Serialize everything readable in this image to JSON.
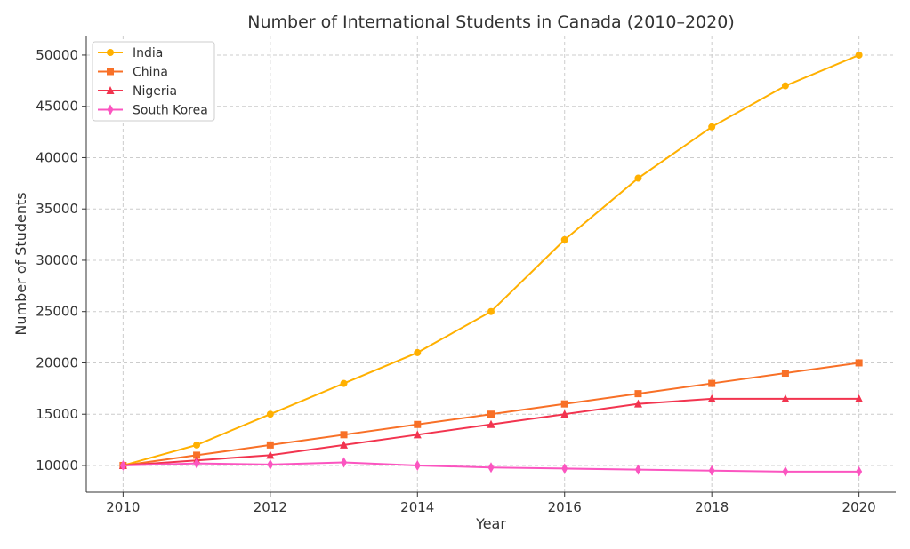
{
  "chart_data": {
    "type": "line",
    "title": "Number of International Students in Canada (2010–2020)",
    "xlabel": "Year",
    "ylabel": "Number of Students",
    "x": [
      2010,
      2011,
      2012,
      2013,
      2014,
      2015,
      2016,
      2017,
      2018,
      2019,
      2020
    ],
    "xlim": [
      2009.5,
      2020.5
    ],
    "ylim": [
      7400,
      51900
    ],
    "xticks": [
      2010,
      2012,
      2014,
      2016,
      2018,
      2020
    ],
    "yticks": [
      10000,
      15000,
      20000,
      25000,
      30000,
      35000,
      40000,
      45000,
      50000
    ],
    "grid": true,
    "legend_position": "top-left",
    "series": [
      {
        "name": "India",
        "color": "#ffb000",
        "marker": "circle",
        "values": [
          10000,
          12000,
          15000,
          18000,
          21000,
          25000,
          32000,
          38000,
          43000,
          47000,
          50000
        ]
      },
      {
        "name": "China",
        "color": "#f87027",
        "marker": "square",
        "values": [
          10000,
          11000,
          12000,
          13000,
          14000,
          15000,
          16000,
          17000,
          18000,
          19000,
          20000
        ]
      },
      {
        "name": "Nigeria",
        "color": "#f2344f",
        "marker": "triangle",
        "values": [
          10000,
          10500,
          11000,
          12000,
          13000,
          14000,
          15000,
          16000,
          16500,
          16500,
          16500
        ]
      },
      {
        "name": "South Korea",
        "color": "#fb55c0",
        "marker": "diamond",
        "values": [
          10000,
          10200,
          10100,
          10300,
          10000,
          9800,
          9700,
          9600,
          9500,
          9400,
          9400
        ]
      }
    ]
  }
}
